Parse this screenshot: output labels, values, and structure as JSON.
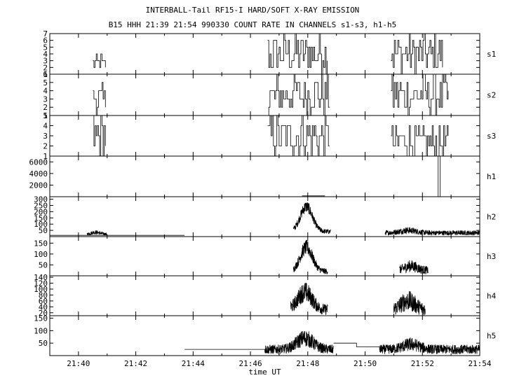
{
  "chart_data": {
    "type": "line",
    "title": "INTERBALL-Tail RF15-I HARD/SOFT X-RAY EMISSION",
    "subtitle": "B15 HHH 21:39 21:54 990330  COUNT RATE IN CHANNELS s1-s3, h1-h5",
    "xlabel": "time UT",
    "x_range_minutes": [
      39,
      54
    ],
    "x_ticks": [
      {
        "minute": 40,
        "label": "21:40"
      },
      {
        "minute": 42,
        "label": "21:42"
      },
      {
        "minute": 44,
        "label": "21:44"
      },
      {
        "minute": 46,
        "label": "21:46"
      },
      {
        "minute": 48,
        "label": "21:48"
      },
      {
        "minute": 50,
        "label": "21:50"
      },
      {
        "minute": 52,
        "label": "21:52"
      },
      {
        "minute": 54,
        "label": "21:54"
      }
    ],
    "panels": [
      {
        "name": "s1",
        "ylim": [
          1,
          7
        ],
        "yticks": [
          1,
          2,
          3,
          4,
          5,
          6,
          7
        ]
      },
      {
        "name": "s2",
        "ylim": [
          1,
          6
        ],
        "yticks": [
          1,
          2,
          3,
          4,
          5,
          6
        ]
      },
      {
        "name": "s3",
        "ylim": [
          1,
          5
        ],
        "yticks": [
          1,
          2,
          3,
          4,
          5
        ]
      },
      {
        "name": "h1",
        "ylim": [
          0,
          7000
        ],
        "yticks": [
          2000,
          4000,
          6000
        ]
      },
      {
        "name": "h2",
        "ylim": [
          0,
          320
        ],
        "yticks": [
          50,
          100,
          150,
          200,
          250,
          300
        ]
      },
      {
        "name": "h3",
        "ylim": [
          0,
          180
        ],
        "yticks": [
          50,
          100,
          150
        ]
      },
      {
        "name": "h4",
        "ylim": [
          10,
          145
        ],
        "yticks": [
          20,
          40,
          60,
          80,
          100,
          120,
          140
        ]
      },
      {
        "name": "h5",
        "ylim": [
          0,
          160
        ],
        "yticks": [
          50,
          100,
          150
        ]
      }
    ]
  }
}
